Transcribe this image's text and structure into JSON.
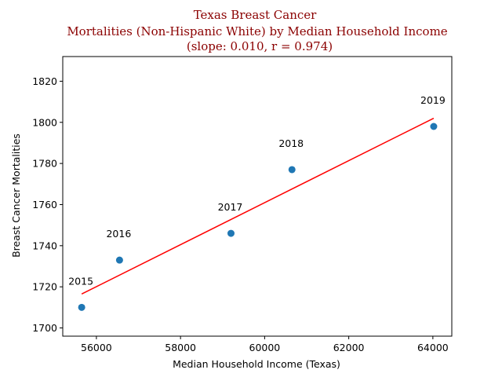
{
  "chart_data": {
    "type": "scatter",
    "title_lines": [
      "Texas Breast Cancer",
      "Mortalities (Non-Hispanic White) by Median Household Income",
      "(slope: 0.010, r = 0.974)"
    ],
    "title_color": "#8b0000",
    "xlabel": "Median Household Income (Texas)",
    "ylabel": "Breast Cancer Mortalities",
    "xlim": [
      55200,
      64450
    ],
    "ylim": [
      1696,
      1832
    ],
    "x_ticks": [
      56000,
      58000,
      60000,
      62000,
      64000
    ],
    "y_ticks": [
      1700,
      1720,
      1740,
      1760,
      1780,
      1800,
      1820
    ],
    "grid": false,
    "points": [
      {
        "label": "2015",
        "x": 55650,
        "y": 1710
      },
      {
        "label": "2016",
        "x": 56550,
        "y": 1733
      },
      {
        "label": "2017",
        "x": 59200,
        "y": 1746
      },
      {
        "label": "2018",
        "x": 60650,
        "y": 1777
      },
      {
        "label": "2019",
        "x": 64020,
        "y": 1798
      }
    ],
    "point_color": "#1f77b4",
    "trend_line": {
      "x": [
        55650,
        64020
      ],
      "y": [
        1716.5,
        1802
      ],
      "color": "#ff0000"
    }
  }
}
